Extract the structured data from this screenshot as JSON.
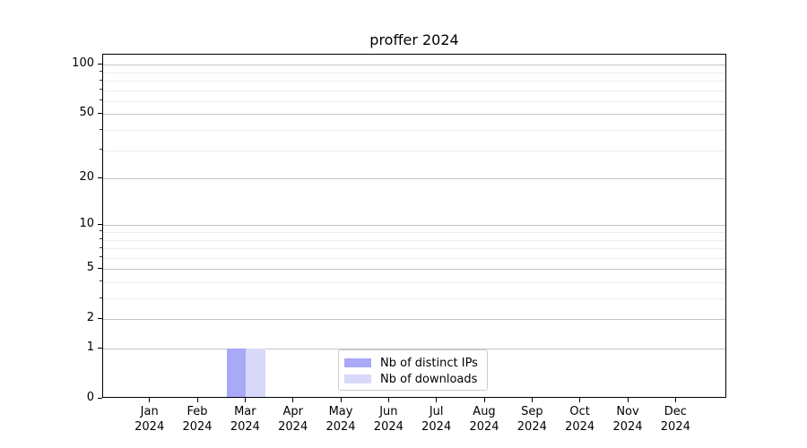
{
  "chart_data": {
    "type": "bar",
    "title": "proffer 2024",
    "categories": [
      "Jan 2024",
      "Feb 2024",
      "Mar 2024",
      "Apr 2024",
      "May 2024",
      "Jun 2024",
      "Jul 2024",
      "Aug 2024",
      "Sep 2024",
      "Oct 2024",
      "Nov 2024",
      "Dec 2024"
    ],
    "series": [
      {
        "name": "Nb of distinct IPs",
        "color": "#a9a9f7",
        "values": [
          0,
          0,
          1,
          0,
          0,
          0,
          0,
          0,
          0,
          0,
          0,
          0
        ]
      },
      {
        "name": "Nb of downloads",
        "color": "#d8d8fa",
        "values": [
          0,
          0,
          1,
          0,
          0,
          0,
          0,
          0,
          0,
          0,
          0,
          0
        ]
      }
    ],
    "y_axis": {
      "scale": "log1p",
      "major_ticks": [
        0,
        1,
        2,
        5,
        10,
        20,
        50,
        100
      ],
      "minor_ticks": [
        3,
        4,
        6,
        7,
        8,
        9,
        30,
        40,
        60,
        70,
        80,
        90
      ],
      "ylim": [
        0,
        115
      ]
    },
    "xlabel": "",
    "ylabel": "",
    "grid": "on",
    "legend": {
      "position": "lower center"
    }
  },
  "colors": {
    "grid_major": "#c4c4c4",
    "grid_minor": "#ededed",
    "spine": "#000000",
    "legend_border": "#cccccc",
    "background": "#ffffff"
  }
}
